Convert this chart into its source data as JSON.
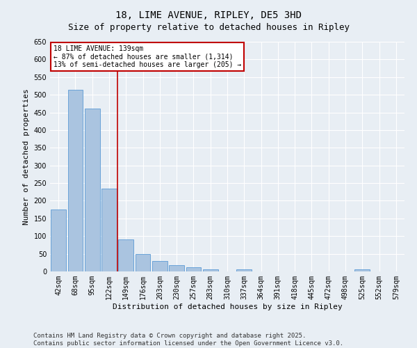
{
  "title": "18, LIME AVENUE, RIPLEY, DE5 3HD",
  "subtitle": "Size of property relative to detached houses in Ripley",
  "xlabel": "Distribution of detached houses by size in Ripley",
  "ylabel": "Number of detached properties",
  "categories": [
    "42sqm",
    "68sqm",
    "95sqm",
    "122sqm",
    "149sqm",
    "176sqm",
    "203sqm",
    "230sqm",
    "257sqm",
    "283sqm",
    "310sqm",
    "337sqm",
    "364sqm",
    "391sqm",
    "418sqm",
    "445sqm",
    "472sqm",
    "498sqm",
    "525sqm",
    "552sqm",
    "579sqm"
  ],
  "values": [
    175,
    515,
    460,
    235,
    90,
    50,
    30,
    18,
    12,
    5,
    0,
    5,
    0,
    0,
    0,
    0,
    0,
    0,
    5,
    0,
    0
  ],
  "bar_color": "#aac4e0",
  "bar_edge_color": "#5b9bd5",
  "vline_color": "#c00000",
  "annotation_text": "18 LIME AVENUE: 139sqm\n← 87% of detached houses are smaller (1,314)\n13% of semi-detached houses are larger (205) →",
  "annotation_box_color": "#c00000",
  "ylim": [
    0,
    650
  ],
  "yticks": [
    0,
    50,
    100,
    150,
    200,
    250,
    300,
    350,
    400,
    450,
    500,
    550,
    600,
    650
  ],
  "background_color": "#e8eef4",
  "grid_color": "#ffffff",
  "footer": "Contains HM Land Registry data © Crown copyright and database right 2025.\nContains public sector information licensed under the Open Government Licence v3.0.",
  "title_fontsize": 10,
  "subtitle_fontsize": 9,
  "axis_label_fontsize": 8,
  "tick_fontsize": 7,
  "annotation_fontsize": 7,
  "footer_fontsize": 6.5
}
